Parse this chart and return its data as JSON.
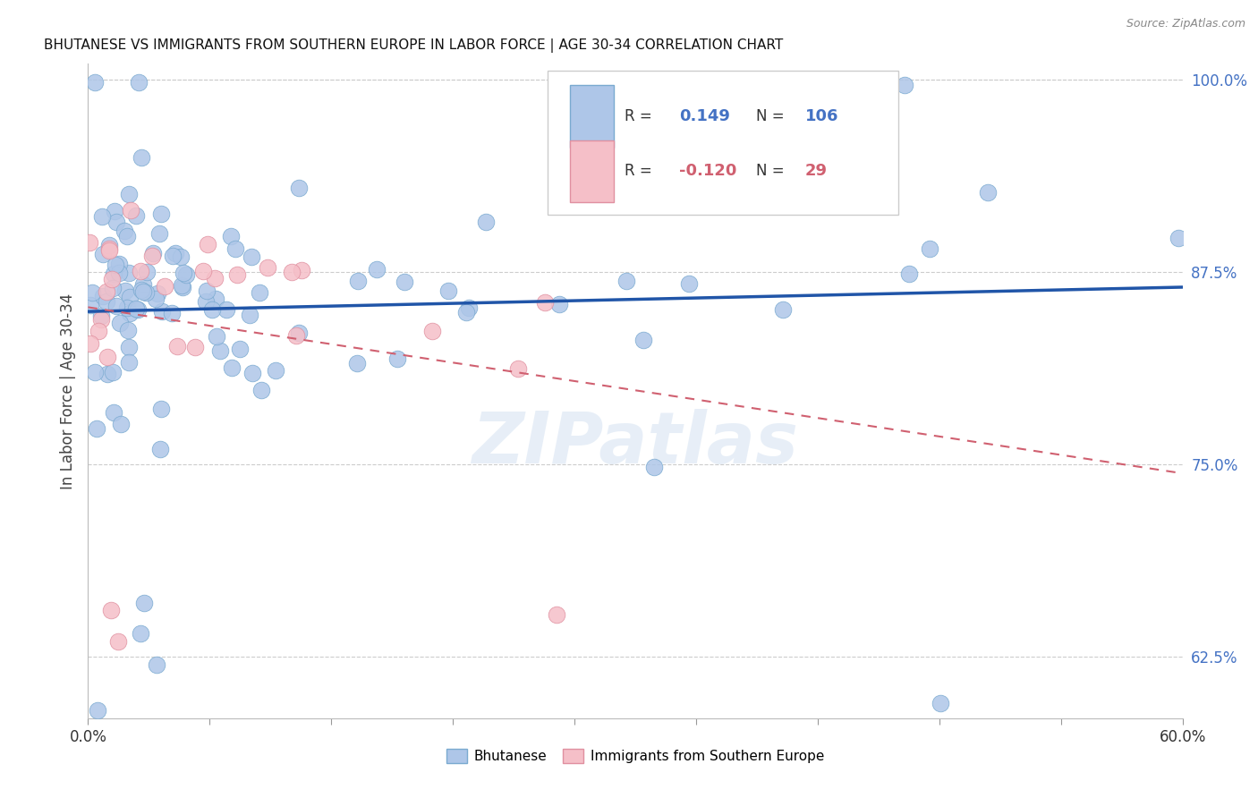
{
  "title": "BHUTANESE VS IMMIGRANTS FROM SOUTHERN EUROPE IN LABOR FORCE | AGE 30-34 CORRELATION CHART",
  "source": "Source: ZipAtlas.com",
  "ylabel": "In Labor Force | Age 30-34",
  "xlim": [
    0.0,
    0.6
  ],
  "ylim": [
    0.585,
    1.01
  ],
  "y_ticks": [
    0.625,
    0.75,
    0.875,
    1.0
  ],
  "y_tick_labels": [
    "62.5%",
    "75.0%",
    "87.5%",
    "100.0%"
  ],
  "x_tick_labels_ends": [
    "0.0%",
    "60.0%"
  ],
  "blue_color": "#aec6e8",
  "pink_color": "#f5bfc8",
  "blue_edge_color": "#7aaad0",
  "pink_edge_color": "#e090a0",
  "blue_line_color": "#2055a8",
  "pink_line_color": "#d06070",
  "ytick_color": "#4472c4",
  "legend_label_blue": "Bhutanese",
  "legend_label_pink": "Immigrants from Southern Europe",
  "watermark": "ZIPatlas",
  "background_color": "#ffffff",
  "grid_color": "#cccccc",
  "blue_R": "0.149",
  "blue_N": "106",
  "pink_R": "-0.120",
  "pink_N": "29",
  "blue_trend_x": [
    0.0,
    0.6
  ],
  "blue_trend_y": [
    0.858,
    0.9
  ],
  "pink_trend_x": [
    0.0,
    0.6
  ],
  "pink_trend_y": [
    0.878,
    0.752
  ]
}
